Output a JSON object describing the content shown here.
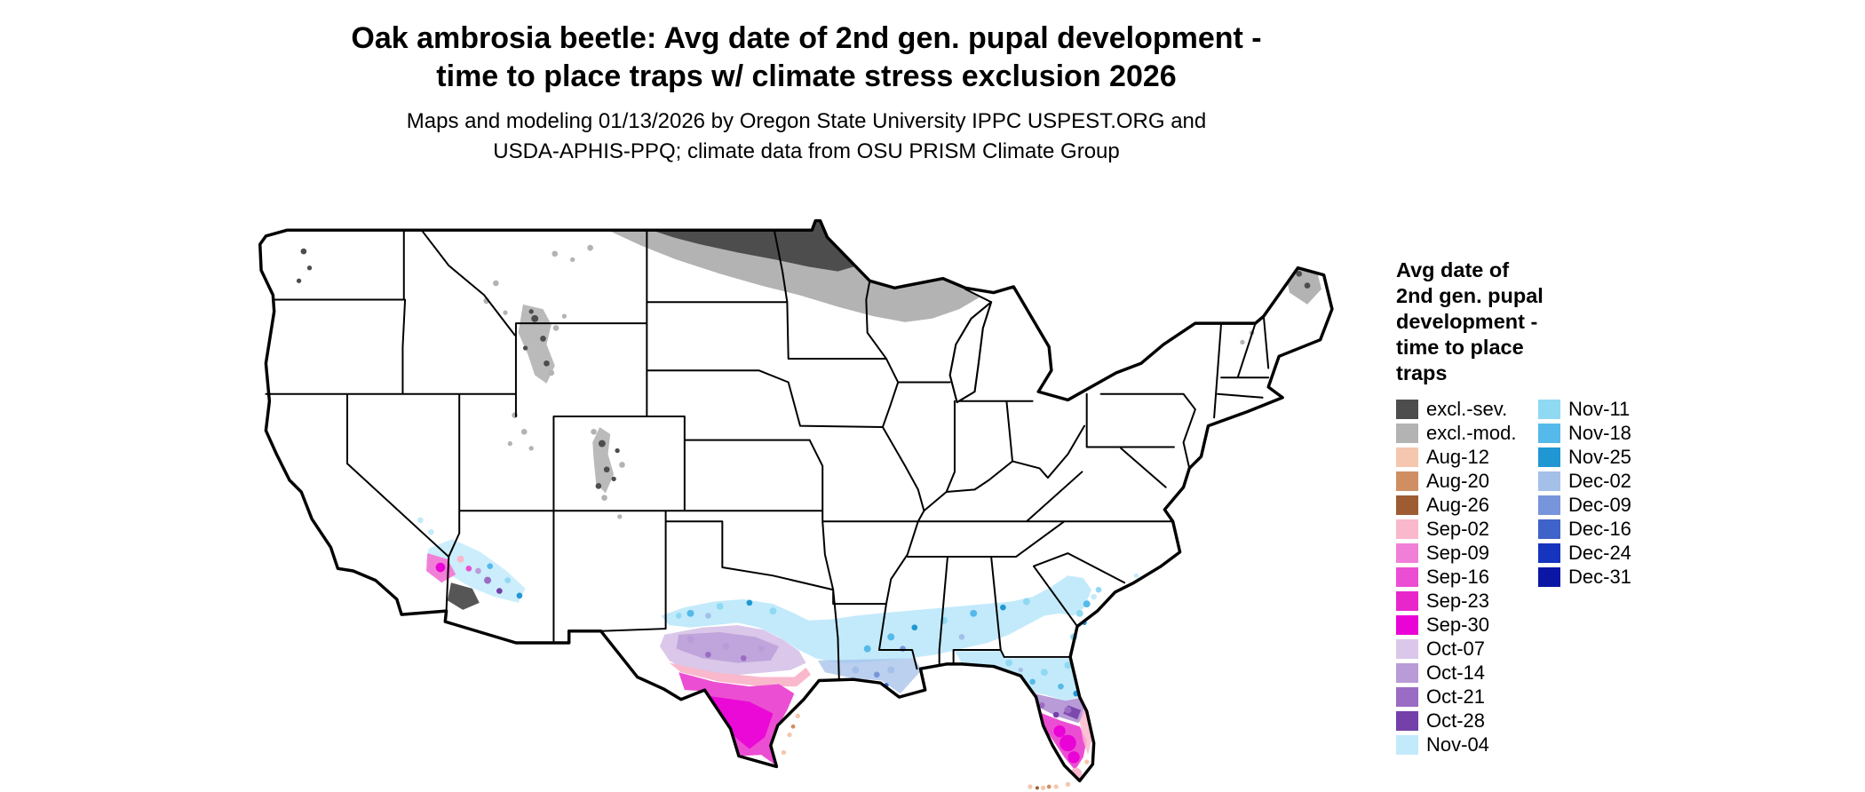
{
  "header": {
    "title_line1": "Oak ambrosia beetle: Avg date of 2nd gen. pupal development -",
    "title_line2": "time to place traps w/ climate stress exclusion 2026",
    "subtitle_line1": "Maps and modeling 01/13/2026 by Oregon State University IPPC USPEST.ORG and",
    "subtitle_line2": "USDA-APHIS-PPQ; climate data from OSU PRISM Climate Group"
  },
  "legend": {
    "title_lines": [
      "Avg date of",
      "2nd gen. pupal",
      "development -",
      "time to place",
      "traps"
    ],
    "column1": [
      {
        "label": "excl.-sev.",
        "color": "#4d4d4d"
      },
      {
        "label": "excl.-mod.",
        "color": "#b3b3b3"
      },
      {
        "label": "Aug-12",
        "color": "#f4c7ae"
      },
      {
        "label": "Aug-20",
        "color": "#cf8f63"
      },
      {
        "label": "Aug-26",
        "color": "#9e5c33"
      },
      {
        "label": "Sep-02",
        "color": "#fab8cc"
      },
      {
        "label": "Sep-09",
        "color": "#f17fd8"
      },
      {
        "label": "Sep-16",
        "color": "#ec4ed3"
      },
      {
        "label": "Sep-23",
        "color": "#e827cb"
      },
      {
        "label": "Sep-30",
        "color": "#e903d6"
      },
      {
        "label": "Oct-07",
        "color": "#dac7e9"
      },
      {
        "label": "Oct-14",
        "color": "#b99bd8"
      },
      {
        "label": "Oct-21",
        "color": "#9b6cc4"
      },
      {
        "label": "Oct-28",
        "color": "#7440a9"
      },
      {
        "label": "Nov-04",
        "color": "#c3eafb"
      }
    ],
    "column2": [
      {
        "label": "Nov-11",
        "color": "#90d9f3"
      },
      {
        "label": "Nov-18",
        "color": "#55b9e9"
      },
      {
        "label": "Nov-25",
        "color": "#2097d3"
      },
      {
        "label": "Dec-02",
        "color": "#a4c0e9"
      },
      {
        "label": "Dec-09",
        "color": "#7795da"
      },
      {
        "label": "Dec-16",
        "color": "#3f63c9"
      },
      {
        "label": "Dec-24",
        "color": "#1634bd"
      },
      {
        "label": "Dec-31",
        "color": "#0b17a4"
      }
    ]
  },
  "map": {
    "label": "Contiguous United States choropleth map with state borders",
    "line_color": "#000000",
    "land_color": "#ffffff",
    "regions": [
      {
        "area": "Canadian border band: eastern Montana, North Dakota, northern Minnesota",
        "value": "excl.-sev."
      },
      {
        "area": "Montana, Dakotas, Minnesota, northern Wisconsin, upper Michigan, northern Maine, Rockies of Wyoming/Colorado/Utah",
        "value": "excl.-mod."
      },
      {
        "area": "Gulf Coast band from central Texas across Louisiana, Mississippi, Alabama, Georgia to the South Carolina coast",
        "value": "Nov-04 to Nov-25"
      },
      {
        "area": "Southern Louisiana",
        "value": "Nov-18 to Dec-09"
      },
      {
        "area": "Central/south-central Texas",
        "value": "Oct-07 to Oct-28"
      },
      {
        "area": "South Texas",
        "value": "Sep-02 to Sep-30"
      },
      {
        "area": "Texas barrier-island coast",
        "value": "Aug-12 to Sep-02"
      },
      {
        "area": "Florida panhandle and north Florida",
        "value": "Nov-04 to Nov-25"
      },
      {
        "area": "Central Florida",
        "value": "Oct-07 to Oct-28"
      },
      {
        "area": "South-central Florida",
        "value": "Sep-09 to Sep-30"
      },
      {
        "area": "Florida tip and Keys",
        "value": "Aug-12 to Sep-02"
      },
      {
        "area": "Southern and central Arizona mixed speckled zone",
        "value": "Sep-02 to Nov-25 with excl. patches"
      }
    ]
  }
}
